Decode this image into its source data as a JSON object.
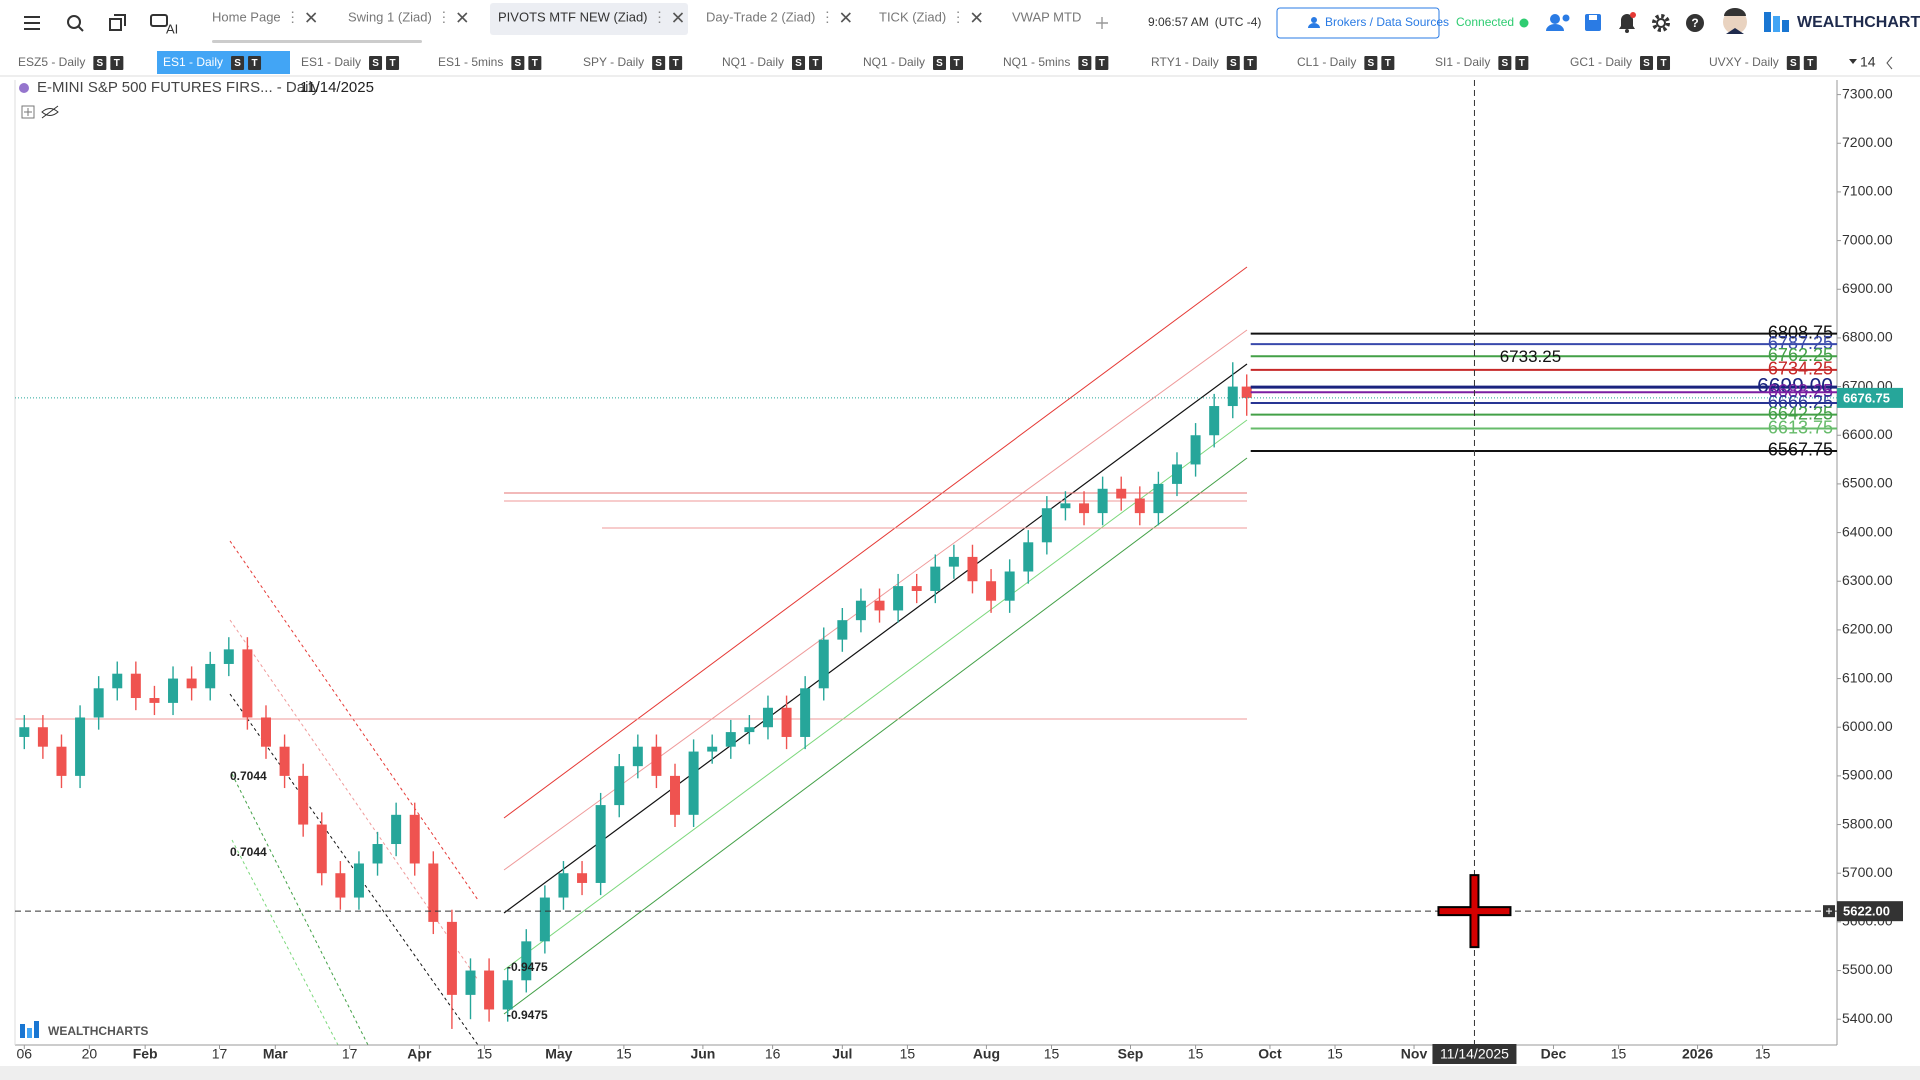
{
  "toolbar": {
    "ai_label": "AI",
    "tabs": [
      "Home Page",
      "Swing 1 (Ziad)",
      "PIVOTS MTF NEW (Ziad)",
      "Day-Trade 2 (Ziad)",
      "TICK (Ziad)",
      "VWAP MTD"
    ],
    "active_tab": 2,
    "time": "9:06:57 AM",
    "timezone": "(UTC -4)",
    "brokers_button": "Brokers / Data Sources",
    "status": "Connected",
    "logo": "WEALTHCHARTS"
  },
  "symbol_tabs": {
    "items": [
      "ESZ5 - Daily",
      "ES1 - Daily",
      "ES1 - Daily",
      "ES1 - 5mins",
      "SPY - Daily",
      "NQ1 - Daily",
      "NQ1 - Daily",
      "NQ1 - 5mins",
      "RTY1 - Daily",
      "CL1 - Daily",
      "SI1 - Daily",
      "GC1 - Daily",
      "UVXY - Daily"
    ],
    "badges": [
      "S",
      "T"
    ],
    "active": 1,
    "more_count": "14"
  },
  "chart_data": {
    "type": "candlestick",
    "title": "E-MINI S&P 500 FUTURES FIRS... - Daily",
    "date": "11/14/2025",
    "watermark": "WEALTHCHARTS",
    "up_color": "#26a69a",
    "down_color": "#ef5350",
    "x": [
      "2025-01-06",
      "2025-01-10",
      "2025-01-14",
      "2025-01-18",
      "2025-01-22",
      "2025-01-26",
      "2025-01-30",
      "2025-02-03",
      "2025-02-07",
      "2025-02-11",
      "2025-02-15",
      "2025-02-19",
      "2025-02-23",
      "2025-02-27",
      "2025-03-03",
      "2025-03-07",
      "2025-03-11",
      "2025-03-15",
      "2025-03-19",
      "2025-03-23",
      "2025-03-27",
      "2025-03-31",
      "2025-04-04",
      "2025-04-08",
      "2025-04-12",
      "2025-04-16",
      "2025-04-20",
      "2025-04-24",
      "2025-04-28",
      "2025-05-02",
      "2025-05-06",
      "2025-05-10",
      "2025-05-14",
      "2025-05-18",
      "2025-05-22",
      "2025-05-26",
      "2025-05-30",
      "2025-06-03",
      "2025-06-07",
      "2025-06-11",
      "2025-06-15",
      "2025-06-19",
      "2025-06-23",
      "2025-06-27",
      "2025-07-01",
      "2025-07-05",
      "2025-07-09",
      "2025-07-13",
      "2025-07-17",
      "2025-07-21",
      "2025-07-25",
      "2025-07-29",
      "2025-08-02",
      "2025-08-06",
      "2025-08-10",
      "2025-08-14",
      "2025-08-18",
      "2025-08-22",
      "2025-08-26",
      "2025-08-30",
      "2025-09-03",
      "2025-09-07",
      "2025-09-11",
      "2025-09-15",
      "2025-09-19",
      "2025-09-23",
      "2025-09-26"
    ],
    "open": [
      5980,
      6000,
      5960,
      5900,
      6020,
      6080,
      6110,
      6060,
      6050,
      6100,
      6080,
      6130,
      6160,
      6020,
      5960,
      5900,
      5800,
      5700,
      5650,
      5720,
      5760,
      5820,
      5720,
      5600,
      5450,
      5500,
      5420,
      5480,
      5560,
      5650,
      5700,
      5680,
      5840,
      5920,
      5960,
      5900,
      5820,
      5950,
      5960,
      5990,
      6000,
      6040,
      5980,
      6080,
      6180,
      6220,
      6260,
      6240,
      6290,
      6280,
      6330,
      6350,
      6300,
      6260,
      6320,
      6380,
      6450,
      6460,
      6440,
      6490,
      6470,
      6440,
      6500,
      6540,
      6600,
      6660,
      6700
    ],
    "high": [
      6025,
      6025,
      5985,
      6045,
      6105,
      6135,
      6135,
      6085,
      6125,
      6125,
      6155,
      6185,
      6185,
      6045,
      5985,
      5925,
      5825,
      5725,
      5745,
      5785,
      5845,
      5845,
      5745,
      5625,
      5525,
      5525,
      5505,
      5585,
      5675,
      5725,
      5725,
      5865,
      5945,
      5985,
      5985,
      5925,
      5975,
      5985,
      6015,
      6025,
      6065,
      6065,
      6105,
      6205,
      6245,
      6285,
      6285,
      6315,
      6315,
      6355,
      6375,
      6375,
      6325,
      6345,
      6405,
      6475,
      6485,
      6485,
      6515,
      6515,
      6495,
      6525,
      6565,
      6625,
      6685,
      6750,
      6725
    ],
    "low": [
      5955,
      5935,
      5875,
      5875,
      5995,
      6055,
      6035,
      6025,
      6025,
      6055,
      6055,
      6105,
      5995,
      5935,
      5875,
      5775,
      5675,
      5625,
      5625,
      5695,
      5735,
      5695,
      5575,
      5380,
      5400,
      5395,
      5395,
      5455,
      5535,
      5625,
      5655,
      5655,
      5815,
      5895,
      5875,
      5795,
      5795,
      5925,
      5935,
      5965,
      5975,
      5955,
      5955,
      6055,
      6155,
      6195,
      6215,
      6215,
      6255,
      6255,
      6305,
      6275,
      6235,
      6235,
      6295,
      6355,
      6425,
      6415,
      6415,
      6445,
      6415,
      6415,
      6475,
      6515,
      6575,
      6635,
      6640
    ],
    "close": [
      6000,
      5960,
      5900,
      6020,
      6080,
      6110,
      6060,
      6050,
      6100,
      6080,
      6130,
      6160,
      6020,
      5960,
      5900,
      5800,
      5700,
      5650,
      5720,
      5760,
      5820,
      5720,
      5600,
      5450,
      5500,
      5420,
      5480,
      5560,
      5650,
      5700,
      5680,
      5840,
      5920,
      5960,
      5900,
      5820,
      5950,
      5960,
      5990,
      6000,
      6040,
      5980,
      6080,
      6180,
      6220,
      6260,
      6240,
      6290,
      6280,
      6330,
      6350,
      6300,
      6260,
      6320,
      6380,
      6450,
      6460,
      6440,
      6490,
      6470,
      6440,
      6500,
      6540,
      6600,
      6660,
      6700,
      6676.75
    ],
    "xlim": [
      "2025-01-04",
      "2026-01-31"
    ],
    "xticks": [
      {
        "value": "2025-01-06",
        "label": "06"
      },
      {
        "value": "2025-01-20",
        "label": "20"
      },
      {
        "value": "2025-02-01",
        "label": "Feb"
      },
      {
        "value": "2025-02-17",
        "label": "17"
      },
      {
        "value": "2025-03-01",
        "label": "Mar"
      },
      {
        "value": "2025-03-17",
        "label": "17"
      },
      {
        "value": "2025-04-01",
        "label": "Apr"
      },
      {
        "value": "2025-04-15",
        "label": "15"
      },
      {
        "value": "2025-05-01",
        "label": "May"
      },
      {
        "value": "2025-05-15",
        "label": "15"
      },
      {
        "value": "2025-06-01",
        "label": "Jun"
      },
      {
        "value": "2025-06-16",
        "label": "16"
      },
      {
        "value": "2025-07-01",
        "label": "Jul"
      },
      {
        "value": "2025-07-15",
        "label": "15"
      },
      {
        "value": "2025-08-01",
        "label": "Aug"
      },
      {
        "value": "2025-08-15",
        "label": "15"
      },
      {
        "value": "2025-09-01",
        "label": "Sep"
      },
      {
        "value": "2025-09-15",
        "label": "15"
      },
      {
        "value": "2025-10-01",
        "label": "Oct"
      },
      {
        "value": "2025-10-15",
        "label": "15"
      },
      {
        "value": "2025-11-01",
        "label": "Nov"
      },
      {
        "value": "2025-12-01",
        "label": "Dec"
      },
      {
        "value": "2025-12-15",
        "label": "15"
      },
      {
        "value": "2026-01-01",
        "label": "2026"
      },
      {
        "value": "2026-01-15",
        "label": "15"
      }
    ],
    "ylim": [
      5347,
      7330
    ],
    "yticks": [
      {
        "value": 5400,
        "label": "5400.00"
      },
      {
        "value": 5500,
        "label": "5500.00"
      },
      {
        "value": 5600,
        "label": "5600.00"
      },
      {
        "value": 5700,
        "label": "5700.00"
      },
      {
        "value": 5800,
        "label": "5800.00"
      },
      {
        "value": 5900,
        "label": "5900.00"
      },
      {
        "value": 6000,
        "label": "6000.00"
      },
      {
        "value": 6100,
        "label": "6100.00"
      },
      {
        "value": 6200,
        "label": "6200.00"
      },
      {
        "value": 6300,
        "label": "6300.00"
      },
      {
        "value": 6400,
        "label": "6400.00"
      },
      {
        "value": 6500,
        "label": "6500.00"
      },
      {
        "value": 6600,
        "label": "6600.00"
      },
      {
        "value": 6700,
        "label": "6700.00"
      },
      {
        "value": 6800,
        "label": "6800.00"
      },
      {
        "value": 6900,
        "label": "6900.00"
      },
      {
        "value": 7000,
        "label": "7000.00"
      },
      {
        "value": 7100,
        "label": "7100.00"
      },
      {
        "value": 7200,
        "label": "7200.00"
      },
      {
        "value": 7300,
        "label": "7300.00"
      }
    ],
    "grid": false,
    "levels": [
      {
        "value": 6808.75,
        "color": "#111111"
      },
      {
        "value": 6787.25,
        "color": "#3949ab"
      },
      {
        "value": 6762.25,
        "color": "#43a047"
      },
      {
        "value": 6734.25,
        "color": "#c62828"
      },
      {
        "value": 6699,
        "label": "6699.00",
        "color": "#1a237e"
      },
      {
        "value": 6688.25,
        "color": "#7b1fa2"
      },
      {
        "value": 6666.25,
        "color": "#283593"
      },
      {
        "value": 6642.25,
        "color": "#43a047"
      },
      {
        "value": 6613.75,
        "color": "#66bb6a"
      },
      {
        "value": 6567.75,
        "color": "#111111"
      }
    ],
    "price_labels": [
      6733.25
    ],
    "channel_labels": [
      0.7044,
      0.7044,
      -0.9475,
      -0.9475
    ],
    "crosshair": {
      "x": {
        "value": "2025-11-14",
        "label": "11/14/2025"
      },
      "y": {
        "value": 5622,
        "label": "5622.00"
      }
    }
  }
}
